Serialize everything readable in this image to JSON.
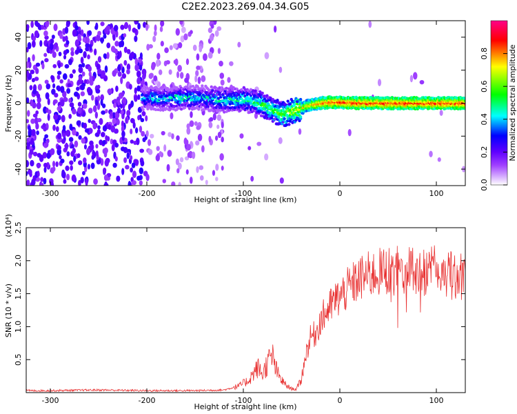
{
  "title": "C2E2.2023.269.04.34.G05",
  "chart_data": [
    {
      "type": "heatmap",
      "xlabel": "Height of straight line (km)",
      "ylabel": "Frequency (Hz)",
      "xlim": [
        -325,
        130
      ],
      "ylim": [
        -50,
        50
      ],
      "xticks": [
        -300,
        -200,
        -100,
        0,
        100
      ],
      "yticks": [
        -40,
        -20,
        0,
        20,
        40
      ],
      "colorbar": {
        "label": "Normalized spectral amplitude",
        "range": [
          0,
          1
        ],
        "ticks": [
          "0.0",
          "0.2",
          "0.4",
          "0.6",
          "0.8"
        ],
        "colors": [
          "#ffffff",
          "#8000ff",
          "#0000ff",
          "#00ffff",
          "#00ff00",
          "#ffff00",
          "#ff0000",
          "#ff00aa"
        ]
      },
      "ridge": {
        "x": [
          -200,
          -180,
          -160,
          -140,
          -120,
          -100,
          -90,
          -80,
          -70,
          -60,
          -50,
          -40,
          -30,
          -20,
          -10,
          0,
          20,
          40,
          60,
          80,
          100,
          130
        ],
        "y": [
          3,
          3,
          3.5,
          3,
          2,
          2,
          1,
          -1,
          -4,
          -7,
          -5,
          -3,
          -1,
          0,
          0.5,
          0.5,
          0,
          0,
          0,
          0,
          0,
          0
        ],
        "amplitude": [
          0.4,
          0.42,
          0.45,
          0.42,
          0.45,
          0.5,
          0.5,
          0.55,
          0.55,
          0.6,
          0.65,
          0.7,
          0.75,
          0.8,
          0.85,
          0.85,
          0.85,
          0.85,
          0.85,
          0.85,
          0.85,
          0.85
        ]
      }
    },
    {
      "type": "line",
      "xlabel": "Height of straight line (km)",
      "ylabel": "SNR (10 * v/v)",
      "yscale_label": "(x10⁴)",
      "xlim": [
        -325,
        130
      ],
      "ylim": [
        0,
        2.5
      ],
      "xticks": [
        -300,
        -200,
        -100,
        0,
        100
      ],
      "yticks": [
        0.5,
        1.0,
        1.5,
        2.0,
        2.5
      ],
      "series": [
        {
          "color": "#e83030",
          "x": [
            -325,
            -300,
            -250,
            -200,
            -150,
            -120,
            -105,
            -95,
            -90,
            -85,
            -80,
            -75,
            -70,
            -65,
            -60,
            -55,
            -50,
            -45,
            -40,
            -35,
            -30,
            -25,
            -20,
            -15,
            -10,
            -5,
            0,
            10,
            20,
            30,
            40,
            50,
            60,
            70,
            80,
            90,
            100,
            110,
            120,
            130
          ],
          "y": [
            0.03,
            0.03,
            0.04,
            0.03,
            0.03,
            0.04,
            0.1,
            0.18,
            0.28,
            0.38,
            0.28,
            0.45,
            0.55,
            0.3,
            0.18,
            0.1,
            0.06,
            0.05,
            0.2,
            0.6,
            0.85,
            0.9,
            1.1,
            1.2,
            1.3,
            1.4,
            1.45,
            1.6,
            1.72,
            1.78,
            1.82,
            1.85,
            1.85,
            1.85,
            1.8,
            1.85,
            1.85,
            1.8,
            1.75,
            1.78
          ]
        }
      ]
    }
  ]
}
